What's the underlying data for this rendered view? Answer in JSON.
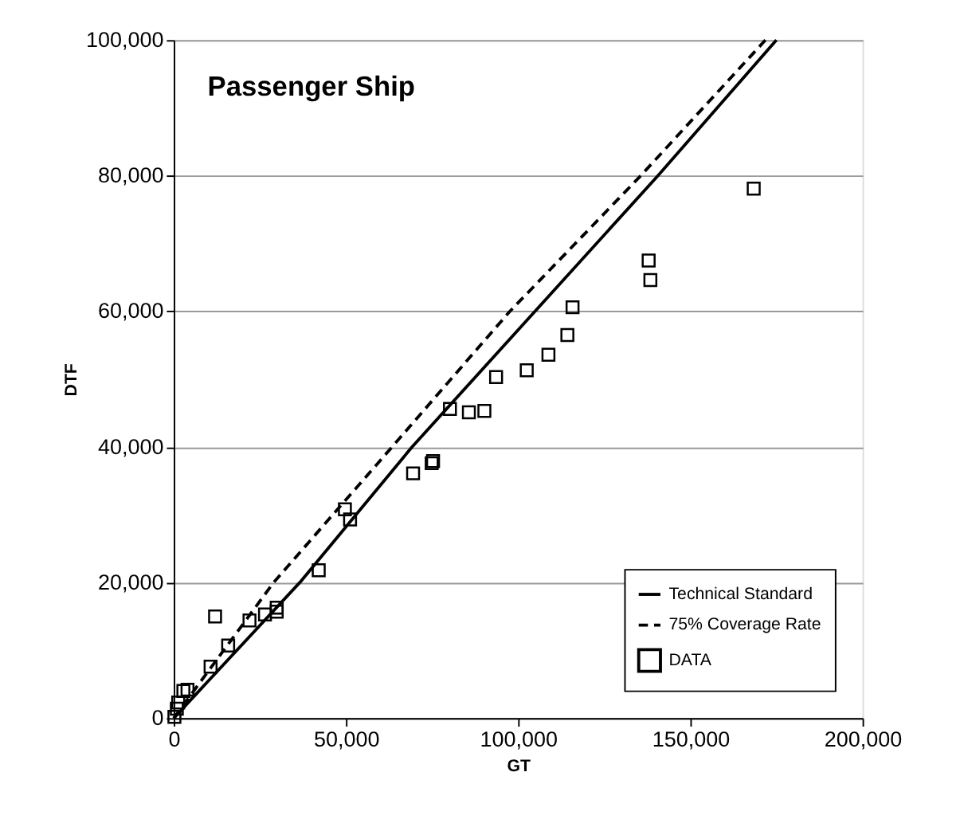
{
  "chart_data": {
    "type": "scatter",
    "xlabel": "GT",
    "ylabel": "DTF",
    "annotations": [
      "Passenger Ship"
    ],
    "xlim": [
      0,
      200000
    ],
    "xticks": [
      0,
      {
        "value": 50000,
        "label": "50,000"
      },
      {
        "value": 100000,
        "label": "100,000"
      },
      {
        "value": 150000,
        "label": "150,000"
      },
      {
        "value": 200000,
        "label": "200,000"
      }
    ],
    "ylim": [
      0,
      100000
    ],
    "yticks": [
      0,
      {
        "value": 20000,
        "label": "20,000"
      },
      {
        "value": 40000,
        "label": "40,000"
      },
      {
        "value": 60000,
        "label": "60,000"
      },
      {
        "value": 80000,
        "label": "80,000"
      },
      {
        "value": 100000,
        "label": "100,000"
      }
    ],
    "grid": "y",
    "legend": "bottom right",
    "series": [
      {
        "name": "Technical Standard",
        "type": "line",
        "color": "#000000",
        "line_style": "solid",
        "marker": "none",
        "x": [
          0,
          36600,
          69200,
          104900,
          140600,
          175000
        ],
        "values": [
          0,
          20000,
          40000,
          60000,
          80000,
          100000
        ]
      },
      {
        "name": "75% Coverage Rate",
        "type": "line",
        "color": "#000000",
        "line_style": "dashed",
        "marker": "none",
        "x": [
          0,
          29000,
          63400,
          97600,
          135600,
          171800
        ],
        "values": [
          0,
          20000,
          40000,
          60000,
          80000,
          100000
        ]
      },
      {
        "name": "DATA",
        "color": "#000000",
        "marker": "square",
        "x": [
          200,
          900,
          1300,
          2800,
          4000,
          10700,
          15800,
          12000,
          22000,
          26500,
          29900,
          29900,
          42100,
          49700,
          51200,
          69500,
          74900,
          75300,
          80200,
          85700,
          90200,
          93600,
          102500,
          108800,
          114300,
          115800,
          137900,
          138400,
          168400
        ],
        "values": [
          200,
          1400,
          2300,
          4000,
          4200,
          7600,
          10700,
          15000,
          14400,
          15300,
          15700,
          16300,
          21800,
          30800,
          29300,
          36100,
          37600,
          37900,
          45600,
          45100,
          45300,
          50300,
          51300,
          53600,
          56500,
          60600,
          67500,
          64600,
          78100
        ]
      }
    ]
  }
}
